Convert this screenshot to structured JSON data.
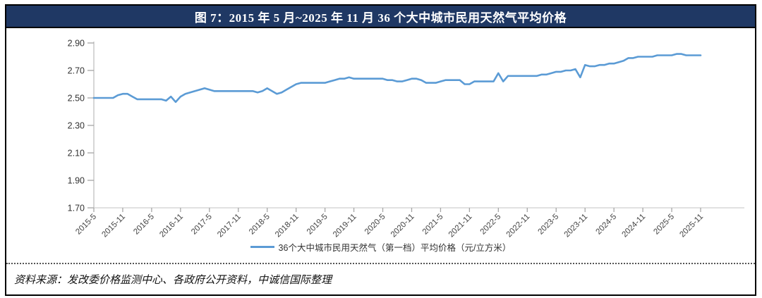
{
  "figure": {
    "title": "图 7：2015 年 5 月~2025 年 11 月 36 个大中城市民用天然气平均价格",
    "source_note": "资料来源：发改委价格监测中心、各政府公开资料，中诚信国际整理"
  },
  "colors": {
    "title_bar_bg": "#1F3864",
    "title_text": "#FFFFFF",
    "line": "#5B9BD5",
    "axis_line": "#BFBFBF",
    "tick_label": "#404040",
    "outer_border": "#000000"
  },
  "chart_data": {
    "type": "line",
    "title": "图 7：2015 年 5 月~2025 年 11 月 36 个大中城市民用天然气平均价格",
    "xlabel": "",
    "ylabel": "",
    "x_unit": "month",
    "x_start": "2015-5",
    "x_end": "2025-11",
    "x_tick_labels": [
      "2015-5",
      "2015-11",
      "2016-5",
      "2016-11",
      "2017-5",
      "2017-11",
      "2018-5",
      "2018-11",
      "2019-5",
      "2019-11",
      "2020-5",
      "2020-11",
      "2021-5",
      "2021-11",
      "2022-5",
      "2022-11",
      "2023-5",
      "2023-11",
      "2024-5",
      "2024-11",
      "2025-5",
      "2025-11"
    ],
    "ylim": [
      1.7,
      2.9
    ],
    "y_ticks": [
      "1.70",
      "1.90",
      "2.10",
      "2.30",
      "2.50",
      "2.70",
      "2.90"
    ],
    "grid": false,
    "legend_position": "bottom",
    "series": [
      {
        "name": "36个大中城市民用天然气（第一档）平均价格（元/立方米）",
        "values": [
          2.5,
          2.5,
          2.5,
          2.5,
          2.5,
          2.52,
          2.53,
          2.53,
          2.51,
          2.49,
          2.49,
          2.49,
          2.49,
          2.49,
          2.49,
          2.48,
          2.51,
          2.47,
          2.51,
          2.53,
          2.54,
          2.55,
          2.56,
          2.57,
          2.56,
          2.55,
          2.55,
          2.55,
          2.55,
          2.55,
          2.55,
          2.55,
          2.55,
          2.55,
          2.54,
          2.55,
          2.57,
          2.55,
          2.53,
          2.54,
          2.56,
          2.58,
          2.6,
          2.61,
          2.61,
          2.61,
          2.61,
          2.61,
          2.61,
          2.62,
          2.63,
          2.64,
          2.64,
          2.65,
          2.64,
          2.64,
          2.64,
          2.64,
          2.64,
          2.64,
          2.64,
          2.63,
          2.63,
          2.62,
          2.62,
          2.63,
          2.64,
          2.64,
          2.63,
          2.61,
          2.61,
          2.61,
          2.62,
          2.63,
          2.63,
          2.63,
          2.63,
          2.6,
          2.6,
          2.62,
          2.62,
          2.62,
          2.62,
          2.62,
          2.68,
          2.62,
          2.66,
          2.66,
          2.66,
          2.66,
          2.66,
          2.66,
          2.66,
          2.67,
          2.67,
          2.68,
          2.69,
          2.69,
          2.7,
          2.7,
          2.71,
          2.65,
          2.74,
          2.73,
          2.73,
          2.74,
          2.74,
          2.75,
          2.75,
          2.76,
          2.77,
          2.79,
          2.79,
          2.8,
          2.8,
          2.8,
          2.8,
          2.81,
          2.81,
          2.81,
          2.81,
          2.82,
          2.82,
          2.81,
          2.81,
          2.81,
          2.81
        ]
      }
    ]
  }
}
